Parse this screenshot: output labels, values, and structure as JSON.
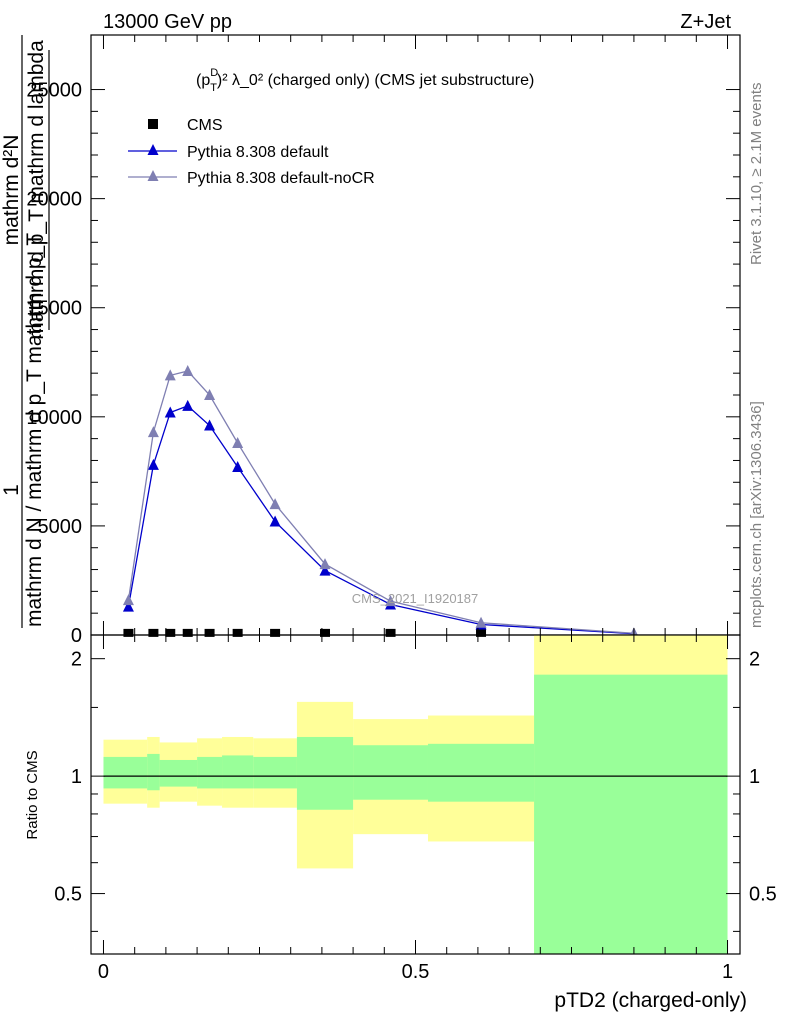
{
  "header": {
    "left": "13000 GeV pp",
    "right": "Z+Jet"
  },
  "side_labels": {
    "rivet": "Rivet 3.1.10, ≥ 2.1M events",
    "mcplots": "mcplots.cern.ch [arXiv:1306.3436]"
  },
  "chart_data": [
    {
      "type": "line",
      "title_parts": {
        "p": "(p",
        "sup_d": "D",
        "sub_t": "T",
        "rest": ")² λ_0² (charged only) (CMS jet substructure)"
      },
      "watermark": "CMS_2021_I1920187",
      "ylabel_parts": {
        "one": "1",
        "num_line1": "mathrm d²N",
        "num_line2": "mathrm d p_T mathrm d lambda",
        "den": "mathrm d N / mathrm d p_T mathrm d p_T"
      },
      "ylim": [
        0,
        27500
      ],
      "xlim": [
        -0.02,
        1.02
      ],
      "y_ticks": [
        0,
        5000,
        10000,
        15000,
        20000,
        25000
      ],
      "y_tick_labels": [
        "0",
        "5000",
        "10000",
        "15000",
        "20000",
        "25000"
      ],
      "legend_position": "top-left",
      "series": [
        {
          "name": "CMS",
          "marker": "square",
          "color": "#000000",
          "x": [
            0.04,
            0.08,
            0.107,
            0.135,
            0.17,
            0.215,
            0.275,
            0.355,
            0.46,
            0.605
          ],
          "y": [
            5,
            5,
            5,
            5,
            5,
            5,
            5,
            5,
            5,
            5
          ]
        },
        {
          "name": "Pythia 8.308 default",
          "marker": "triangle",
          "color": "#0000cc",
          "x": [
            0.04,
            0.08,
            0.107,
            0.135,
            0.17,
            0.215,
            0.275,
            0.355,
            0.46,
            0.605,
            0.85
          ],
          "y": [
            1300,
            7800,
            10200,
            10500,
            9600,
            7700,
            5200,
            2950,
            1400,
            480,
            60
          ]
        },
        {
          "name": "Pythia 8.308 default-noCR",
          "marker": "triangle",
          "color": "#7f7fb2",
          "x": [
            0.04,
            0.08,
            0.107,
            0.135,
            0.17,
            0.215,
            0.275,
            0.355,
            0.46,
            0.605,
            0.85
          ],
          "y": [
            1600,
            9300,
            11900,
            12100,
            11000,
            8800,
            6000,
            3250,
            1550,
            560,
            80
          ]
        }
      ]
    },
    {
      "type": "area",
      "ylabel": "Ratio to CMS",
      "xlabel": "pTD2 (charged-only)",
      "log_y": true,
      "ylim": [
        0.35,
        2.3
      ],
      "xlim": [
        -0.02,
        1.02
      ],
      "x_ticks": [
        0,
        0.5,
        1
      ],
      "x_tick_labels": [
        "0",
        "0.5",
        "1"
      ],
      "y_ticks": [
        0.5,
        1,
        2
      ],
      "y_tick_labels": [
        "0.5",
        "1",
        "2"
      ],
      "band_colors": {
        "outer": "#ffff99",
        "inner": "#99ff99"
      },
      "bins": [
        {
          "x0": 0.0,
          "x1": 0.07,
          "outer": [
            0.85,
            1.24
          ],
          "inner": [
            0.93,
            1.12
          ]
        },
        {
          "x0": 0.07,
          "x1": 0.09,
          "outer": [
            0.83,
            1.26
          ],
          "inner": [
            0.92,
            1.14
          ]
        },
        {
          "x0": 0.09,
          "x1": 0.15,
          "outer": [
            0.86,
            1.22
          ],
          "inner": [
            0.94,
            1.1
          ]
        },
        {
          "x0": 0.15,
          "x1": 0.19,
          "outer": [
            0.84,
            1.25
          ],
          "inner": [
            0.93,
            1.12
          ]
        },
        {
          "x0": 0.19,
          "x1": 0.24,
          "outer": [
            0.83,
            1.26
          ],
          "inner": [
            0.93,
            1.13
          ]
        },
        {
          "x0": 0.24,
          "x1": 0.31,
          "outer": [
            0.83,
            1.25
          ],
          "inner": [
            0.93,
            1.12
          ]
        },
        {
          "x0": 0.31,
          "x1": 0.4,
          "outer": [
            0.58,
            1.55
          ],
          "inner": [
            0.82,
            1.26
          ]
        },
        {
          "x0": 0.4,
          "x1": 0.52,
          "outer": [
            0.71,
            1.4
          ],
          "inner": [
            0.87,
            1.2
          ]
        },
        {
          "x0": 0.52,
          "x1": 0.69,
          "outer": [
            0.68,
            1.43
          ],
          "inner": [
            0.86,
            1.21
          ]
        },
        {
          "x0": 0.69,
          "x1": 1.0,
          "outer": [
            0.35,
            2.3
          ],
          "inner": [
            0.35,
            1.82
          ]
        }
      ],
      "reference_line": 1
    }
  ]
}
